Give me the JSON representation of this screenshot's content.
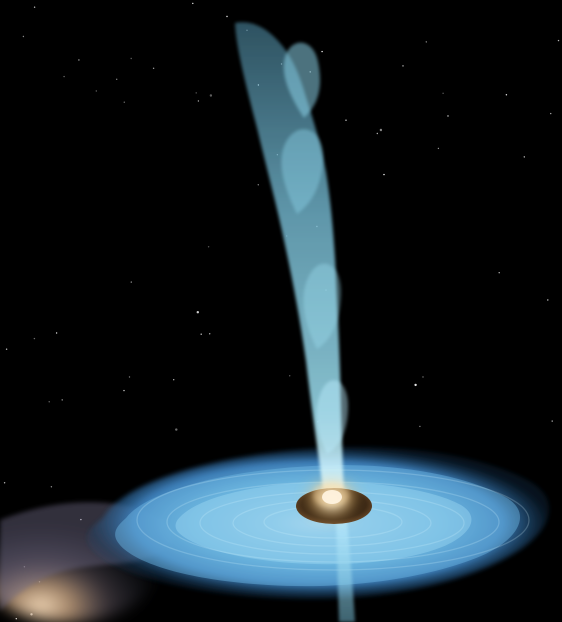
{
  "scene": {
    "background": "#000000",
    "colors": {
      "jet": "#8fd2ea",
      "disk_light": "#9fd8f2",
      "disk_mid": "#5aa9d9",
      "disk_dark": "#2f6fa7",
      "core": "#fff2c8",
      "core_glow": "#ffbf5a",
      "black_hole": "#140d07",
      "companion_gas": "#d9b58f"
    }
  }
}
